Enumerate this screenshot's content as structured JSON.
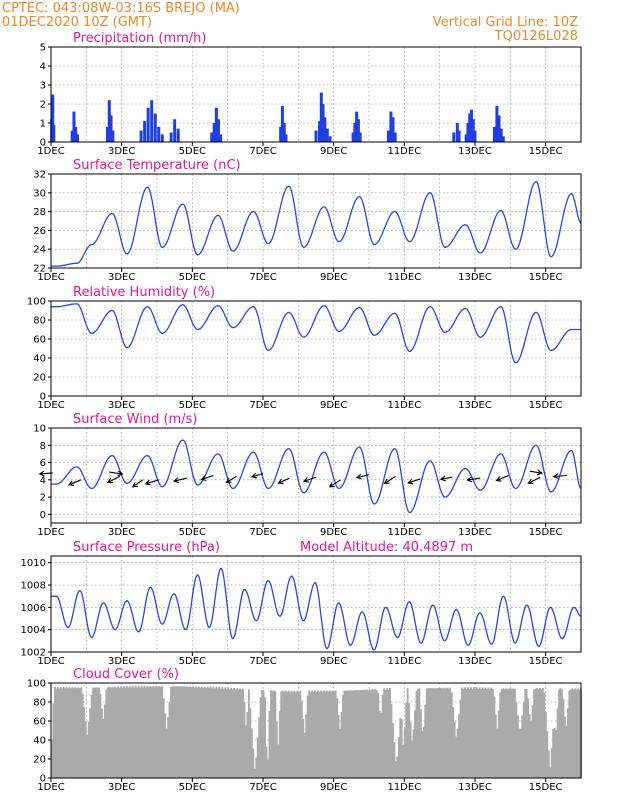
{
  "header": {
    "left_line1": "CPTEC:   043:08W-03:16S   BREJO (MA)",
    "left_line2": "01DEC2020  10Z (GMT)",
    "right_line1": "Vertical Grid Line: 10Z",
    "right_line2": "TQ0126L028"
  },
  "colors": {
    "header": "#e8892a",
    "panel_title": "#e0199a",
    "series": "#2a46e6",
    "bars": "#1f3fe0",
    "cloud": "#aaaaaa"
  },
  "chart_data": [
    {
      "type": "bar",
      "title": "Precipitation (mm/h)",
      "xlabel": "",
      "ylabel": "",
      "x_ticks": [
        "1DEC",
        "3DEC",
        "5DEC",
        "7DEC",
        "9DEC",
        "11DEC",
        "13DEC",
        "15DEC"
      ],
      "x_tick_values": [
        0,
        2,
        4,
        6,
        8,
        10,
        12,
        14
      ],
      "xlim": [
        0,
        15
      ],
      "ylim": [
        0,
        5
      ],
      "y_ticks": [
        0,
        1,
        2,
        3,
        4,
        5
      ],
      "grid": true,
      "bar_events": [
        [
          0.02,
          1.2
        ],
        [
          0.05,
          2.5
        ],
        [
          0.08,
          0.9
        ],
        [
          0.6,
          0.6
        ],
        [
          0.65,
          1.6
        ],
        [
          0.7,
          0.8
        ],
        [
          0.75,
          0.4
        ],
        [
          1.6,
          0.8
        ],
        [
          1.65,
          2.2
        ],
        [
          1.7,
          1.4
        ],
        [
          1.75,
          0.6
        ],
        [
          2.55,
          0.6
        ],
        [
          2.65,
          1.1
        ],
        [
          2.75,
          1.8
        ],
        [
          2.85,
          2.2
        ],
        [
          2.95,
          1.5
        ],
        [
          3.05,
          0.8
        ],
        [
          3.15,
          0.4
        ],
        [
          3.4,
          0.5
        ],
        [
          3.5,
          1.2
        ],
        [
          3.6,
          0.7
        ],
        [
          4.55,
          0.5
        ],
        [
          4.62,
          1.0
        ],
        [
          4.68,
          1.8
        ],
        [
          4.74,
          1.2
        ],
        [
          4.8,
          0.4
        ],
        [
          6.5,
          0.8
        ],
        [
          6.55,
          1.9
        ],
        [
          6.6,
          1.0
        ],
        [
          6.65,
          0.4
        ],
        [
          7.5,
          0.6
        ],
        [
          7.6,
          1.1
        ],
        [
          7.65,
          2.6
        ],
        [
          7.7,
          2.0
        ],
        [
          7.75,
          1.3
        ],
        [
          7.82,
          0.7
        ],
        [
          7.9,
          0.3
        ],
        [
          8.55,
          0.5
        ],
        [
          8.6,
          1.0
        ],
        [
          8.65,
          1.6
        ],
        [
          8.7,
          1.2
        ],
        [
          8.75,
          0.5
        ],
        [
          9.55,
          0.6
        ],
        [
          9.62,
          1.6
        ],
        [
          9.68,
          1.3
        ],
        [
          9.74,
          0.5
        ],
        [
          11.4,
          0.5
        ],
        [
          11.5,
          1.0
        ],
        [
          11.55,
          0.6
        ],
        [
          11.75,
          0.4
        ],
        [
          11.8,
          1.0
        ],
        [
          11.85,
          1.5
        ],
        [
          11.9,
          1.7
        ],
        [
          11.95,
          1.2
        ],
        [
          12.0,
          0.6
        ],
        [
          12.55,
          0.8
        ],
        [
          12.62,
          1.9
        ],
        [
          12.68,
          1.4
        ],
        [
          12.74,
          0.7
        ],
        [
          12.8,
          0.3
        ]
      ]
    },
    {
      "type": "line",
      "title": "Surface Temperature (nC)",
      "xlabel": "",
      "ylabel": "",
      "x_ticks": [
        "1DEC",
        "3DEC",
        "5DEC",
        "7DEC",
        "9DEC",
        "11DEC",
        "13DEC",
        "15DEC"
      ],
      "x_tick_values": [
        0,
        2,
        4,
        6,
        8,
        10,
        12,
        14
      ],
      "xlim": [
        0,
        15
      ],
      "ylim": [
        22,
        32
      ],
      "y_ticks": [
        22,
        24,
        26,
        28,
        30,
        32
      ],
      "grid": true,
      "peaks": [
        22.5,
        27.8,
        30.6,
        28.8,
        27.6,
        28.0,
        30.7,
        28.5,
        29.6,
        28.0,
        30.0,
        26.6,
        28.1,
        31.2,
        29.9
      ],
      "troughs": [
        22.2,
        24.5,
        23.5,
        24.2,
        23.4,
        23.8,
        24.6,
        24.2,
        24.8,
        24.5,
        24.8,
        24.2,
        23.6,
        24.0,
        23.2
      ],
      "last_value": 26.8
    },
    {
      "type": "line",
      "title": "Relative Humidity (%)",
      "xlabel": "",
      "ylabel": "",
      "x_ticks": [
        "1DEC",
        "3DEC",
        "5DEC",
        "7DEC",
        "9DEC",
        "11DEC",
        "13DEC",
        "15DEC"
      ],
      "x_tick_values": [
        0,
        2,
        4,
        6,
        8,
        10,
        12,
        14
      ],
      "xlim": [
        0,
        15
      ],
      "ylim": [
        0,
        100
      ],
      "y_ticks": [
        0,
        20,
        40,
        60,
        80,
        100
      ],
      "grid": true,
      "peaks": [
        97,
        90,
        94,
        96,
        95,
        94,
        88,
        95,
        93,
        87,
        94,
        92,
        94,
        88,
        70
      ],
      "troughs": [
        94,
        66,
        51,
        66,
        70,
        72,
        48,
        62,
        68,
        64,
        47,
        67,
        62,
        35,
        48
      ],
      "last_value": 70
    },
    {
      "type": "line",
      "title": "Surface Wind (m/s)",
      "xlabel": "",
      "ylabel": "",
      "x_ticks": [
        "1DEC",
        "3DEC",
        "5DEC",
        "7DEC",
        "9DEC",
        "11DEC",
        "13DEC",
        "15DEC"
      ],
      "x_tick_values": [
        0,
        2,
        4,
        6,
        8,
        10,
        12,
        14
      ],
      "xlim": [
        0,
        15
      ],
      "ylim": [
        -1,
        10
      ],
      "y_ticks": [
        0,
        2,
        4,
        6,
        8,
        10
      ],
      "grid": true,
      "peaks": [
        5.5,
        6.8,
        6.8,
        8.6,
        7.0,
        7.2,
        7.6,
        7.2,
        7.8,
        7.6,
        6.2,
        5.3,
        7.0,
        8.0,
        7.4
      ],
      "troughs": [
        3.5,
        3.0,
        3.6,
        3.2,
        3.4,
        3.0,
        3.0,
        2.5,
        3.0,
        1.2,
        0.2,
        2.0,
        2.8,
        3.0,
        2.6
      ],
      "last_value": 3.0,
      "wind_vectors": [
        [
          0.05,
          4.8,
          -13,
          1
        ],
        [
          0.85,
          4.0,
          -12,
          5
        ],
        [
          1.65,
          4.9,
          13,
          2
        ],
        [
          1.95,
          4.4,
          -12,
          6
        ],
        [
          2.6,
          4.0,
          -10,
          7
        ],
        [
          3.05,
          4.0,
          -13,
          4
        ],
        [
          3.85,
          4.2,
          -13,
          3
        ],
        [
          4.6,
          4.5,
          -12,
          4
        ],
        [
          5.25,
          4.4,
          -10,
          6
        ],
        [
          6.0,
          4.7,
          -11,
          3
        ],
        [
          6.75,
          4.2,
          -11,
          5
        ],
        [
          7.5,
          4.3,
          -12,
          4
        ],
        [
          8.2,
          4.0,
          -11,
          7
        ],
        [
          9.0,
          4.6,
          -12,
          3
        ],
        [
          9.75,
          4.4,
          -11,
          7
        ],
        [
          10.45,
          4.1,
          -12,
          4
        ],
        [
          11.35,
          4.3,
          -11,
          2
        ],
        [
          12.15,
          4.2,
          -13,
          2
        ],
        [
          12.95,
          4.5,
          -12,
          5
        ],
        [
          13.55,
          5.0,
          12,
          2
        ],
        [
          13.85,
          4.3,
          -12,
          6
        ],
        [
          14.6,
          4.5,
          -13,
          1
        ]
      ]
    },
    {
      "type": "line",
      "title": "Surface Pressure (hPa)",
      "annotation": "Model Altitude: 40.4897 m",
      "xlabel": "",
      "ylabel": "",
      "x_ticks": [
        "1DEC",
        "3DEC",
        "5DEC",
        "7DEC",
        "9DEC",
        "11DEC",
        "13DEC",
        "15DEC"
      ],
      "x_tick_values": [
        0,
        2,
        4,
        6,
        8,
        10,
        12,
        14
      ],
      "xlim": [
        0,
        15
      ],
      "ylim": [
        1002,
        1010.6
      ],
      "y_ticks": [
        1002,
        1004,
        1006,
        1008,
        1010
      ],
      "grid": true,
      "half_cycle_values": [
        1007.0,
        1004.2,
        1007.5,
        1003.3,
        1006.4,
        1004.0,
        1006.6,
        1003.8,
        1007.8,
        1004.5,
        1007.2,
        1004.0,
        1008.9,
        1004.2,
        1009.5,
        1003.2,
        1007.6,
        1004.8,
        1008.4,
        1005.2,
        1008.8,
        1004.8,
        1008.2,
        1002.3,
        1006.4,
        1002.6,
        1005.6,
        1002.2,
        1006.0,
        1003.3,
        1006.5,
        1002.8,
        1006.2,
        1003.0,
        1005.8,
        1002.6,
        1005.5,
        1002.7,
        1007.0,
        1002.8,
        1006.2,
        1002.5,
        1006.0,
        1003.2,
        1006.0
      ],
      "last_value": 1005.2
    },
    {
      "type": "bar",
      "title": "Cloud Cover (%)",
      "xlabel": "",
      "ylabel": "",
      "x_ticks": [
        "1DEC",
        "3DEC",
        "5DEC",
        "7DEC",
        "9DEC",
        "11DEC",
        "13DEC",
        "15DEC"
      ],
      "x_tick_values": [
        0,
        2,
        4,
        6,
        8,
        10,
        12,
        14
      ],
      "xlim": [
        0,
        15
      ],
      "ylim": [
        0,
        100
      ],
      "y_ticks": [
        0,
        20,
        40,
        60,
        80,
        100
      ],
      "grid": true,
      "dips": [
        [
          0.0,
          0.12,
          40
        ],
        [
          1.0,
          0.3,
          45
        ],
        [
          1.45,
          0.2,
          60
        ],
        [
          3.25,
          0.25,
          50
        ],
        [
          5.5,
          0.15,
          50
        ],
        [
          5.75,
          0.35,
          5
        ],
        [
          6.1,
          0.15,
          0
        ],
        [
          6.4,
          0.15,
          30
        ],
        [
          7.15,
          0.2,
          45
        ],
        [
          8.15,
          0.2,
          50
        ],
        [
          9.3,
          0.15,
          60
        ],
        [
          9.75,
          0.35,
          10
        ],
        [
          9.95,
          0.2,
          30
        ],
        [
          10.2,
          0.25,
          35
        ],
        [
          10.5,
          0.2,
          40
        ],
        [
          11.45,
          0.3,
          40
        ],
        [
          12.6,
          0.2,
          50
        ],
        [
          13.25,
          0.3,
          45
        ],
        [
          13.55,
          0.2,
          55
        ],
        [
          14.1,
          0.35,
          10
        ],
        [
          14.25,
          0.2,
          40
        ],
        [
          14.55,
          0.2,
          50
        ]
      ],
      "base_levels": [
        [
          0,
          96
        ],
        [
          3.6,
          98
        ],
        [
          7.0,
          92
        ],
        [
          10.7,
          96
        ],
        [
          15,
          95
        ]
      ]
    }
  ]
}
